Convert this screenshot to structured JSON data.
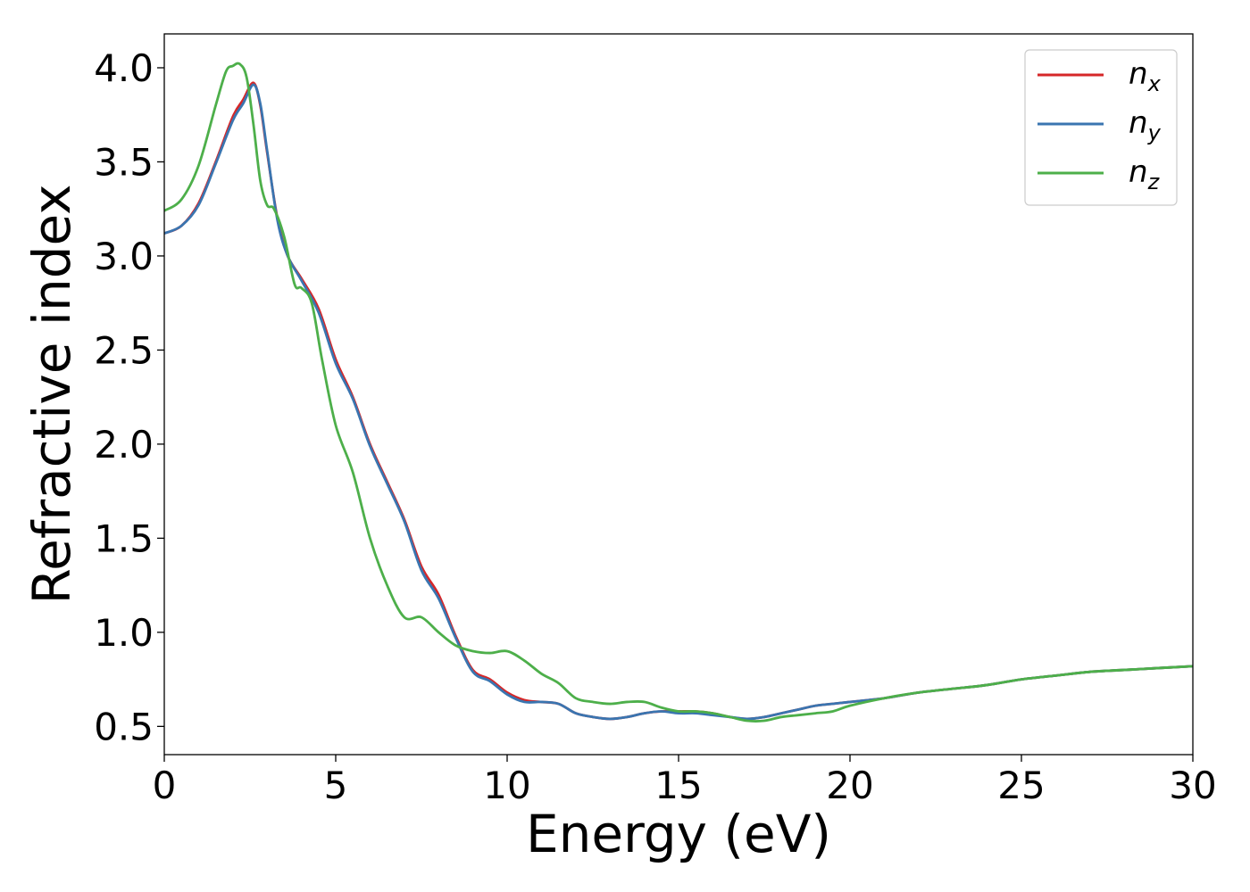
{
  "chart_data": {
    "type": "line",
    "title": "",
    "xlabel": "Energy (eV)",
    "ylabel": "Refractive index",
    "xlim": [
      0,
      30
    ],
    "ylim": [
      0.35,
      4.18
    ],
    "xticks": [
      0,
      5,
      10,
      15,
      20,
      25,
      30
    ],
    "xtick_labels": [
      "0",
      "5",
      "10",
      "15",
      "20",
      "25",
      "30"
    ],
    "yticks": [
      0.5,
      1.0,
      1.5,
      2.0,
      2.5,
      3.0,
      3.5,
      4.0
    ],
    "ytick_labels": [
      "0.5",
      "1.0",
      "1.5",
      "2.0",
      "2.5",
      "3.0",
      "3.5",
      "4.0"
    ],
    "grid": false,
    "legend_position": "top-right",
    "series": [
      {
        "name": "n_x",
        "legend_main": "n",
        "legend_sub": "x",
        "color": "#d62728",
        "x": [
          0,
          0.5,
          1.0,
          1.5,
          2.0,
          2.3,
          2.6,
          2.8,
          3.0,
          3.3,
          3.6,
          4.0,
          4.5,
          5.0,
          5.5,
          6.0,
          6.5,
          7.0,
          7.5,
          8.0,
          8.5,
          9.0,
          9.5,
          10.0,
          10.5,
          11.0,
          11.5,
          12.0,
          12.5,
          13.0,
          13.5,
          14.0,
          14.5,
          15.0,
          15.5,
          16.0,
          16.5,
          17.0,
          17.5,
          18.0,
          18.5,
          19.0,
          19.5,
          20.0,
          21.0,
          22.0,
          23.0,
          24.0,
          25.0,
          26.0,
          27.0,
          28.0,
          29.0,
          30.0
        ],
        "values": [
          3.12,
          3.16,
          3.28,
          3.5,
          3.74,
          3.83,
          3.92,
          3.8,
          3.55,
          3.2,
          3.0,
          2.88,
          2.72,
          2.45,
          2.25,
          2.0,
          1.8,
          1.6,
          1.35,
          1.2,
          0.98,
          0.8,
          0.75,
          0.68,
          0.64,
          0.63,
          0.62,
          0.57,
          0.55,
          0.54,
          0.55,
          0.57,
          0.58,
          0.58,
          0.58,
          0.57,
          0.55,
          0.54,
          0.55,
          0.57,
          0.59,
          0.61,
          0.62,
          0.63,
          0.65,
          0.68,
          0.7,
          0.72,
          0.75,
          0.77,
          0.79,
          0.8,
          0.81,
          0.82
        ]
      },
      {
        "name": "n_y",
        "legend_main": "n",
        "legend_sub": "y",
        "color": "#3a75b0",
        "x": [
          0,
          0.5,
          1.0,
          1.5,
          2.0,
          2.3,
          2.6,
          2.8,
          3.0,
          3.3,
          3.6,
          4.0,
          4.5,
          5.0,
          5.5,
          6.0,
          6.5,
          7.0,
          7.5,
          8.0,
          8.5,
          9.0,
          9.5,
          10.0,
          10.5,
          11.0,
          11.5,
          12.0,
          12.5,
          13.0,
          13.5,
          14.0,
          14.5,
          15.0,
          15.5,
          16.0,
          16.5,
          17.0,
          17.5,
          18.0,
          18.5,
          19.0,
          19.5,
          20.0,
          21.0,
          22.0,
          23.0,
          24.0,
          25.0,
          26.0,
          27.0,
          28.0,
          29.0,
          30.0
        ],
        "values": [
          3.12,
          3.16,
          3.27,
          3.49,
          3.72,
          3.81,
          3.91,
          3.81,
          3.56,
          3.19,
          3.0,
          2.87,
          2.7,
          2.43,
          2.24,
          1.99,
          1.79,
          1.59,
          1.33,
          1.18,
          0.97,
          0.79,
          0.74,
          0.67,
          0.63,
          0.63,
          0.62,
          0.57,
          0.55,
          0.54,
          0.55,
          0.57,
          0.58,
          0.57,
          0.57,
          0.56,
          0.55,
          0.54,
          0.55,
          0.57,
          0.59,
          0.61,
          0.62,
          0.63,
          0.65,
          0.68,
          0.7,
          0.72,
          0.75,
          0.77,
          0.79,
          0.8,
          0.81,
          0.82
        ]
      },
      {
        "name": "n_z",
        "legend_main": "n",
        "legend_sub": "z",
        "color": "#4daf4a",
        "x": [
          0,
          0.5,
          1.0,
          1.5,
          1.8,
          2.0,
          2.2,
          2.4,
          2.6,
          2.8,
          3.0,
          3.2,
          3.5,
          3.8,
          4.0,
          4.3,
          4.6,
          5.0,
          5.5,
          6.0,
          6.5,
          7.0,
          7.5,
          8.0,
          8.5,
          9.0,
          9.5,
          10.0,
          10.5,
          11.0,
          11.5,
          12.0,
          12.5,
          13.0,
          13.5,
          14.0,
          14.5,
          15.0,
          15.5,
          16.0,
          16.5,
          17.0,
          17.5,
          18.0,
          18.5,
          19.0,
          19.5,
          20.0,
          21.0,
          22.0,
          23.0,
          24.0,
          25.0,
          26.0,
          27.0,
          28.0,
          29.0,
          30.0
        ],
        "values": [
          3.24,
          3.3,
          3.48,
          3.8,
          3.98,
          4.01,
          4.02,
          3.95,
          3.7,
          3.4,
          3.27,
          3.25,
          3.1,
          2.85,
          2.83,
          2.75,
          2.45,
          2.1,
          1.85,
          1.5,
          1.25,
          1.08,
          1.08,
          1.0,
          0.93,
          0.9,
          0.89,
          0.9,
          0.85,
          0.78,
          0.73,
          0.65,
          0.63,
          0.62,
          0.63,
          0.63,
          0.6,
          0.58,
          0.58,
          0.57,
          0.55,
          0.53,
          0.53,
          0.55,
          0.56,
          0.57,
          0.58,
          0.61,
          0.65,
          0.68,
          0.7,
          0.72,
          0.75,
          0.77,
          0.79,
          0.8,
          0.81,
          0.82
        ]
      }
    ]
  }
}
